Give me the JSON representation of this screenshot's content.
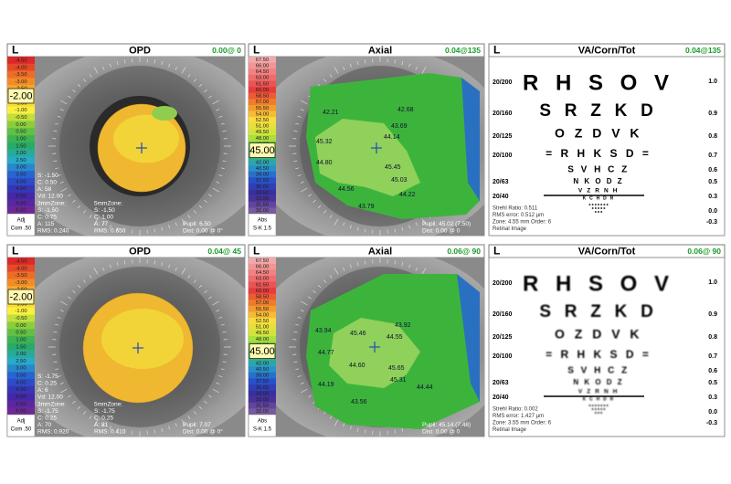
{
  "panels": [
    {
      "kind": "opd",
      "side": "L",
      "title": "OPD",
      "reading": "0.00@ 0",
      "scale_labels": [
        "-4.50",
        "-4.00",
        "-3.50",
        "-3.00",
        "-2.50",
        "-2.00",
        "-1.50",
        "-1.00",
        "-0.50",
        "0.00",
        "0.50",
        "1.00",
        "1.50",
        "2.00",
        "2.50",
        "3.00",
        "3.50",
        "4.00",
        "4.50",
        "5.00",
        "5.50",
        "6.00"
      ],
      "scale_highlight": "-2.00",
      "scale_footer": [
        "Adj",
        "Com .50"
      ],
      "readouts_left": [
        "S: -1.50",
        "C: 0.50",
        "A: 58",
        "Vd: 12.00",
        "3mmZone:",
        "S: -1.50",
        "C: 0.75",
        "A: 115",
        "RMS: 0.240"
      ],
      "readouts_mid": [
        "5mmZone:",
        "S: -1.50",
        "C: 1.00",
        "A: 77",
        "RMS: 0.650"
      ],
      "readouts_right": [
        "Pupil: 6.50",
        "Dist: 0.00 @ 0°"
      ]
    },
    {
      "kind": "axial",
      "side": "L",
      "title": "Axial",
      "reading": "0.04@135",
      "scale_labels": [
        "67.50",
        "66.00",
        "64.50",
        "63.00",
        "61.50",
        "60.00",
        "58.50",
        "57.00",
        "55.50",
        "54.00",
        "52.50",
        "51.00",
        "49.50",
        "48.00",
        "46.50",
        "45.00",
        "43.50",
        "42.00",
        "40.50",
        "39.00",
        "37.50",
        "36.00",
        "34.50",
        "33.00",
        "31.50",
        "30.00"
      ],
      "scale_highlight": "45.00",
      "scale_footer": [
        "Abs",
        "S-K 1.5"
      ],
      "map_labels": [
        "42.21",
        "42.68",
        "43.69",
        "44.14",
        "45.32",
        "44.80",
        "45.45",
        "45.03",
        "44.56",
        "44.22",
        "43.79"
      ],
      "readouts_right": [
        "Pupil: 45.02 (7.50)",
        "Dist: 0.00 @ 0"
      ]
    },
    {
      "kind": "va",
      "side": "L",
      "title": "VA/Corn/Tot",
      "reading": "0.04@135",
      "letter_rows": [
        "R H S O V",
        "S R Z K D",
        "O Z D V K",
        "= R H K S D =",
        "S V H C Z",
        "N K O D Z",
        "V Z R N H",
        "K C H D R"
      ],
      "left_labels": [
        "20/200",
        "20/160",
        "20/125",
        "20/100",
        "20/63",
        "20/40"
      ],
      "right_labels": [
        "1.0",
        "0.9",
        "0.8",
        "0.7",
        "0.6",
        "0.5",
        "0.3",
        "0.0",
        "-0.3"
      ],
      "info": [
        "Strehl Ratio: 0.511",
        "RMS error: 0.512 µm",
        "Zone: 4.55 mm Order: 6",
        "Retinal Image"
      ]
    },
    {
      "kind": "opd",
      "side": "L",
      "title": "OPD",
      "reading": "0.04@ 45",
      "scale_labels": [
        "-4.50",
        "-4.00",
        "-3.50",
        "-3.00",
        "-2.50",
        "-2.00",
        "-1.50",
        "-1.00",
        "-0.50",
        "0.00",
        "0.50",
        "1.00",
        "1.50",
        "2.00",
        "2.50",
        "3.00",
        "3.50",
        "4.00",
        "4.50",
        "5.00",
        "5.50",
        "6.00"
      ],
      "scale_highlight": "-2.00",
      "scale_footer": [
        "Adj",
        "Com .50"
      ],
      "readouts_left": [
        "S: -1.75",
        "C: 0.25",
        "A: 6",
        "Vd: 12.00",
        "3mmZone:",
        "S: -1.75",
        "C: 0.25",
        "A: 70",
        "RMS: 0.920"
      ],
      "readouts_mid": [
        "5mmZone:",
        "S: -1.75",
        "C: 0.25",
        "A: 81",
        "RMS: 0.410"
      ],
      "readouts_right": [
        "Pupil: 7.07",
        "Dist: 0.00 @ 0°"
      ]
    },
    {
      "kind": "axial",
      "side": "L",
      "title": "Axial",
      "reading": "0.06@ 90",
      "scale_labels": [
        "67.50",
        "66.00",
        "64.50",
        "63.00",
        "61.50",
        "60.00",
        "58.50",
        "57.00",
        "55.50",
        "54.00",
        "52.50",
        "51.00",
        "49.50",
        "48.00",
        "46.50",
        "45.00",
        "43.50",
        "42.00",
        "40.50",
        "39.00",
        "37.50",
        "36.00",
        "34.50",
        "33.00",
        "31.50",
        "30.00"
      ],
      "scale_highlight": "45.00",
      "scale_footer": [
        "Abs",
        "S-K 1.5"
      ],
      "map_labels": [
        "43.94",
        "45.46",
        "43.92",
        "44.77",
        "44.55",
        "44.60",
        "45.65",
        "45.31",
        "44.44",
        "44.19",
        "43.56"
      ],
      "readouts_right": [
        "Pupil: 45.14 (7.48)",
        "Dist: 0.00 @ 0"
      ]
    },
    {
      "kind": "va",
      "side": "L",
      "title": "VA/Corn/Tot",
      "reading": "0.06@ 90",
      "letter_rows": [
        "R H S O V",
        "S R Z K D",
        "O Z D V K",
        "= R H K S D =",
        "S V H C Z",
        "N K O D Z",
        "V Z R N H",
        "K C H D R"
      ],
      "left_labels": [
        "20/200",
        "20/160",
        "20/125",
        "20/100",
        "20/63",
        "20/40"
      ],
      "right_labels": [
        "1.0",
        "0.9",
        "0.8",
        "0.7",
        "0.6",
        "0.5",
        "0.3",
        "0.0",
        "-0.3"
      ],
      "info": [
        "Strehl Ratio: 0.002",
        "RMS error: 1.427 µm",
        "Zone: 3.55 mm Order: 6",
        "Retinal Image"
      ]
    }
  ]
}
